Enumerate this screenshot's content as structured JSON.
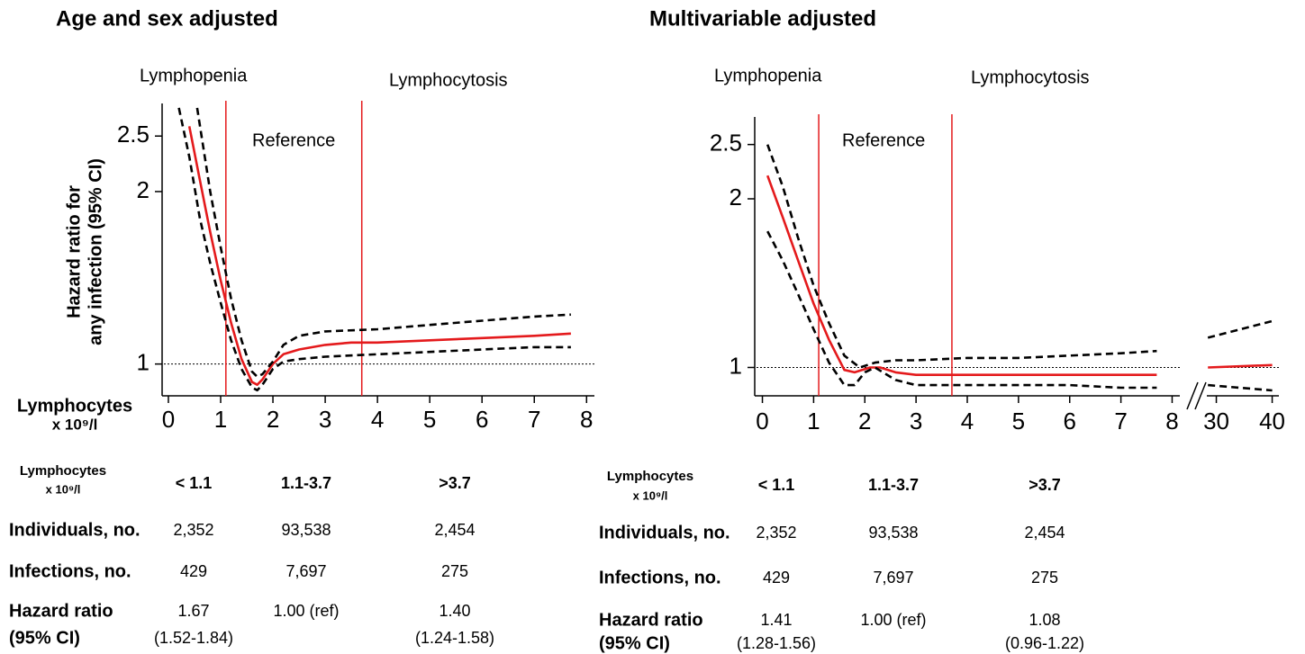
{
  "chart_data": [
    {
      "type": "line",
      "title": "Age and sex adjusted",
      "annotations": [
        "Lymphopenia",
        "Reference",
        "Lymphocytosis"
      ],
      "y_label": [
        "Hazard ratio for",
        "any infection (95% CI)"
      ],
      "x_label": [
        "Lymphocytes",
        "x 10⁹/l"
      ],
      "xlim": [
        -0.12,
        8.15
      ],
      "xticks": [
        0,
        1,
        2,
        3,
        4,
        5,
        6,
        7,
        8
      ],
      "ylim": [
        0.88,
        2.85
      ],
      "yscale": "log",
      "yticks": [
        1,
        2,
        2.5
      ],
      "ref_lines": {
        "values": [
          1.1,
          3.7
        ],
        "color": "#e41a1c"
      },
      "hline": 1,
      "series": [
        {
          "color": "#e41a1c",
          "dash": false,
          "x": [
            0.4,
            0.6,
            0.8,
            1.0,
            1.2,
            1.4,
            1.6,
            1.7,
            1.8,
            2.0,
            2.2,
            2.5,
            3,
            3.5,
            4,
            5,
            6,
            7,
            7.7
          ],
          "values": [
            2.6,
            2.1,
            1.7,
            1.4,
            1.18,
            1.02,
            0.93,
            0.92,
            0.94,
            1.0,
            1.04,
            1.06,
            1.08,
            1.09,
            1.09,
            1.1,
            1.11,
            1.12,
            1.13
          ]
        },
        {
          "color": "#000000",
          "dash": true,
          "x": [
            0.55,
            0.8,
            1.0,
            1.2,
            1.4,
            1.6,
            1.7,
            1.8,
            2.0,
            2.2,
            2.5,
            3,
            4,
            5,
            6,
            7,
            7.7
          ],
          "values": [
            2.8,
            2.0,
            1.6,
            1.3,
            1.1,
            0.97,
            0.95,
            0.96,
            1.01,
            1.08,
            1.12,
            1.14,
            1.15,
            1.17,
            1.19,
            1.21,
            1.22
          ]
        },
        {
          "color": "#000000",
          "dash": true,
          "x": [
            0.2,
            0.4,
            0.6,
            0.8,
            1.0,
            1.2,
            1.4,
            1.6,
            1.7,
            1.8,
            2.0,
            2.2,
            2.5,
            3,
            4,
            5,
            6,
            7,
            7.7
          ],
          "values": [
            2.8,
            2.3,
            1.8,
            1.5,
            1.28,
            1.1,
            0.98,
            0.91,
            0.9,
            0.92,
            0.98,
            1.01,
            1.02,
            1.03,
            1.04,
            1.05,
            1.06,
            1.07,
            1.07
          ]
        }
      ]
    },
    {
      "type": "line",
      "title": "Multivariable adjusted",
      "annotations": [
        "Lymphopenia",
        "Reference",
        "Lymphocytosis"
      ],
      "xlim": [
        -0.15,
        8.15
      ],
      "xticks": [
        0,
        1,
        2,
        3,
        4,
        5,
        6,
        7,
        8
      ],
      "x2lim": [
        28.3,
        41.2
      ],
      "x2ticks": [
        30,
        40
      ],
      "ylim": [
        0.89,
        2.8
      ],
      "yscale": "log",
      "yticks": [
        1,
        2,
        2.5
      ],
      "ref_lines": {
        "values": [
          1.1,
          3.7
        ],
        "color": "#e41a1c"
      },
      "hline": 1,
      "series": [
        {
          "color": "#e41a1c",
          "dash": false,
          "x": [
            0.1,
            0.4,
            0.7,
            1.0,
            1.3,
            1.6,
            1.8,
            2.1,
            2.3,
            2.6,
            3,
            4,
            5,
            6,
            7,
            7.7
          ],
          "values": [
            2.2,
            1.85,
            1.55,
            1.3,
            1.12,
            0.99,
            0.98,
            1.0,
            1.0,
            0.98,
            0.97,
            0.97,
            0.97,
            0.97,
            0.97,
            0.97
          ]
        },
        {
          "color": "#000000",
          "dash": true,
          "x": [
            0.1,
            0.4,
            0.7,
            1.0,
            1.3,
            1.6,
            1.9,
            2.2,
            2.6,
            3,
            4,
            5,
            6,
            7,
            7.7
          ],
          "values": [
            2.5,
            2.1,
            1.7,
            1.4,
            1.2,
            1.05,
            1.0,
            1.02,
            1.03,
            1.03,
            1.04,
            1.04,
            1.05,
            1.06,
            1.07
          ]
        },
        {
          "color": "#000000",
          "dash": true,
          "x": [
            0.1,
            0.4,
            0.7,
            1.0,
            1.3,
            1.6,
            1.8,
            2.0,
            2.2,
            2.6,
            3,
            4,
            5,
            6,
            7,
            7.7
          ],
          "values": [
            1.75,
            1.55,
            1.35,
            1.17,
            1.02,
            0.93,
            0.93,
            0.98,
            1.0,
            0.95,
            0.93,
            0.93,
            0.93,
            0.93,
            0.92,
            0.92
          ]
        },
        {
          "color": "#e41a1c",
          "dash": false,
          "axis": "x2",
          "x": [
            28.5,
            40
          ],
          "values": [
            1.0,
            1.01
          ]
        },
        {
          "color": "#000000",
          "dash": true,
          "axis": "x2",
          "x": [
            28.5,
            40
          ],
          "values": [
            1.13,
            1.21
          ]
        },
        {
          "color": "#000000",
          "dash": true,
          "axis": "x2",
          "x": [
            28.5,
            40
          ],
          "values": [
            0.93,
            0.91
          ]
        }
      ]
    }
  ],
  "tables": [
    {
      "header": [
        [
          "Lymphocytes",
          "x 10⁹/l"
        ],
        "< 1.1",
        "1.1-3.7",
        ">3.7"
      ],
      "rows": [
        [
          "Individuals, no.",
          "2,352",
          "93,538",
          "2,454"
        ],
        [
          "Infections, no.",
          "429",
          "7,697",
          "275"
        ],
        [
          [
            "Hazard ratio",
            "(95% CI)"
          ],
          [
            "1.67",
            "(1.52-1.84)"
          ],
          [
            "1.00 (ref)"
          ],
          [
            "1.40",
            "(1.24-1.58)"
          ]
        ]
      ]
    },
    {
      "header": [
        [
          "Lymphocytes",
          "x 10⁹/l"
        ],
        "< 1.1",
        "1.1-3.7",
        ">3.7"
      ],
      "rows": [
        [
          "Individuals, no.",
          "2,352",
          "93,538",
          "2,454"
        ],
        [
          "Infections, no.",
          "429",
          "7,697",
          "275"
        ],
        [
          [
            "Hazard ratio",
            "(95% CI)"
          ],
          [
            "1.41",
            "(1.28-1.56)"
          ],
          [
            "1.00 (ref)"
          ],
          [
            "1.08",
            "(0.96-1.22)"
          ]
        ]
      ]
    }
  ]
}
